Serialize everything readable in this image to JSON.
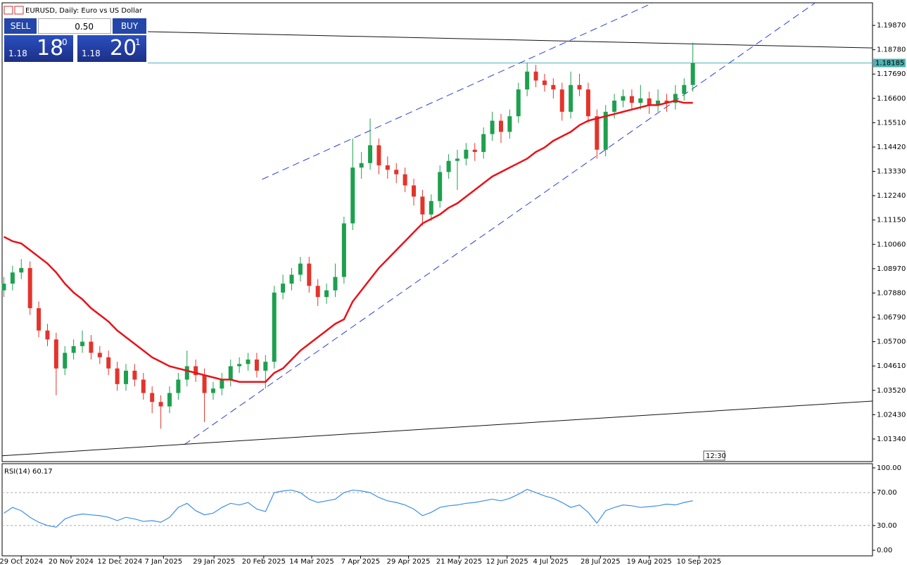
{
  "header": {
    "title": "EURUSD, Daily:  Euro vs US Dollar"
  },
  "trade_panel": {
    "sell": "SELL",
    "lot": "0.50",
    "buy": "BUY",
    "bid_small": "1.18",
    "bid_big": "18",
    "bid_sup": "0",
    "ask_small": "1.18",
    "ask_big": "20",
    "ask_sup": "1"
  },
  "time_label": "12:30",
  "chart_data": [
    {
      "type": "candlestick",
      "up_color": "#1ea04e",
      "down_color": "#e3342b",
      "xlim": [
        -0.2,
        99.6
      ],
      "ylim": [
        1.0036,
        1.2085
      ],
      "open": [
        1.08,
        1.083,
        1.088,
        1.09,
        1.072,
        1.062,
        1.058,
        1.045,
        1.052,
        1.055,
        1.057,
        1.052,
        1.05,
        1.045,
        1.038,
        1.044,
        1.04,
        1.034,
        1.03,
        1.028,
        1.034,
        1.04,
        1.046,
        1.042,
        1.034,
        1.036,
        1.04,
        1.046,
        1.047,
        1.049,
        1.044,
        1.048,
        1.079,
        1.083,
        1.087,
        1.092,
        1.082,
        1.077,
        1.08,
        1.086,
        1.11,
        1.135,
        1.137,
        1.145,
        1.136,
        1.134,
        1.132,
        1.127,
        1.122,
        1.114,
        1.12,
        1.133,
        1.138,
        1.139,
        1.143,
        1.142,
        1.15,
        1.156,
        1.151,
        1.158,
        1.17,
        1.178,
        1.174,
        1.172,
        1.17,
        1.16,
        1.172,
        1.17,
        1.158,
        1.143,
        1.16,
        1.165,
        1.167,
        1.164,
        1.166,
        1.163,
        1.165,
        1.164,
        1.168,
        1.172
      ],
      "high": [
        1.086,
        1.091,
        1.094,
        1.093,
        1.075,
        1.065,
        1.061,
        1.055,
        1.058,
        1.062,
        1.06,
        1.055,
        1.053,
        1.048,
        1.047,
        1.047,
        1.043,
        1.037,
        1.033,
        1.037,
        1.043,
        1.053,
        1.049,
        1.045,
        1.039,
        1.043,
        1.049,
        1.05,
        1.052,
        1.052,
        1.051,
        1.082,
        1.087,
        1.09,
        1.095,
        1.095,
        1.085,
        1.083,
        1.092,
        1.113,
        1.148,
        1.142,
        1.157,
        1.148,
        1.14,
        1.137,
        1.135,
        1.13,
        1.125,
        1.123,
        1.136,
        1.141,
        1.143,
        1.146,
        1.146,
        1.153,
        1.16,
        1.159,
        1.161,
        1.173,
        1.182,
        1.181,
        1.177,
        1.175,
        1.173,
        1.178,
        1.177,
        1.173,
        1.161,
        1.163,
        1.168,
        1.17,
        1.17,
        1.172,
        1.169,
        1.17,
        1.168,
        1.172,
        1.175,
        1.191
      ],
      "low": [
        1.077,
        1.08,
        1.085,
        1.069,
        1.059,
        1.055,
        1.033,
        1.042,
        1.049,
        1.052,
        1.049,
        1.047,
        1.042,
        1.035,
        1.035,
        1.037,
        1.031,
        1.025,
        1.018,
        1.025,
        1.031,
        1.037,
        1.039,
        1.021,
        1.031,
        1.033,
        1.037,
        1.043,
        1.044,
        1.041,
        1.036,
        1.045,
        1.076,
        1.08,
        1.084,
        1.079,
        1.073,
        1.074,
        1.077,
        1.083,
        1.107,
        1.13,
        1.134,
        1.132,
        1.13,
        1.128,
        1.124,
        1.118,
        1.109,
        1.111,
        1.117,
        1.13,
        1.125,
        1.136,
        1.138,
        1.139,
        1.147,
        1.146,
        1.148,
        1.155,
        1.167,
        1.171,
        1.169,
        1.166,
        1.156,
        1.157,
        1.167,
        1.155,
        1.139,
        1.14,
        1.157,
        1.162,
        1.161,
        1.161,
        1.159,
        1.16,
        1.16,
        1.161,
        1.165,
        1.169
      ],
      "close": [
        1.083,
        1.088,
        1.09,
        1.072,
        1.062,
        1.058,
        1.045,
        1.052,
        1.055,
        1.057,
        1.052,
        1.05,
        1.045,
        1.038,
        1.044,
        1.04,
        1.034,
        1.03,
        1.028,
        1.034,
        1.04,
        1.046,
        1.042,
        1.034,
        1.036,
        1.04,
        1.046,
        1.047,
        1.049,
        1.044,
        1.048,
        1.079,
        1.083,
        1.087,
        1.092,
        1.082,
        1.077,
        1.08,
        1.086,
        1.11,
        1.135,
        1.137,
        1.145,
        1.136,
        1.134,
        1.132,
        1.127,
        1.122,
        1.114,
        1.12,
        1.133,
        1.138,
        1.139,
        1.143,
        1.142,
        1.15,
        1.156,
        1.151,
        1.158,
        1.17,
        1.178,
        1.174,
        1.172,
        1.17,
        1.16,
        1.172,
        1.17,
        1.158,
        1.143,
        1.16,
        1.165,
        1.167,
        1.164,
        1.166,
        1.163,
        1.165,
        1.164,
        1.168,
        1.172,
        1.1818
      ],
      "ma": {
        "color": "#e8121a",
        "values": [
          1.104,
          1.102,
          1.101,
          1.098,
          1.095,
          1.092,
          1.088,
          1.083,
          1.079,
          1.076,
          1.072,
          1.069,
          1.066,
          1.062,
          1.059,
          1.056,
          1.053,
          1.05,
          1.048,
          1.046,
          1.045,
          1.044,
          1.043,
          1.042,
          1.041,
          1.04,
          1.04,
          1.039,
          1.039,
          1.039,
          1.039,
          1.043,
          1.045,
          1.049,
          1.053,
          1.056,
          1.059,
          1.062,
          1.065,
          1.067,
          1.075,
          1.08,
          1.085,
          1.09,
          1.094,
          1.098,
          1.102,
          1.106,
          1.11,
          1.112,
          1.114,
          1.117,
          1.119,
          1.122,
          1.125,
          1.128,
          1.131,
          1.133,
          1.135,
          1.137,
          1.139,
          1.142,
          1.144,
          1.147,
          1.149,
          1.151,
          1.154,
          1.156,
          1.157,
          1.158,
          1.159,
          1.16,
          1.161,
          1.162,
          1.163,
          1.163,
          1.164,
          1.165,
          1.164,
          1.164
        ]
      },
      "lines": [
        {
          "color": "#2d3fd6",
          "dash": true,
          "x": [
            20.7,
            93.5
          ],
          "y": [
            1.0109,
            1.2101
          ]
        },
        {
          "color": "#2d3fd6",
          "dash": true,
          "x": [
            29.6,
            74.6
          ],
          "y": [
            1.1297,
            1.2091
          ]
        },
        {
          "color": "#111111",
          "dash": false,
          "x": [
            16.5,
            99.6
          ],
          "y": [
            1.1959,
            1.1886
          ]
        },
        {
          "color": "#111111",
          "dash": false,
          "x": [
            -0.2,
            99.6
          ],
          "y": [
            1.0059,
            1.0304
          ]
        }
      ],
      "hline": {
        "value": 1.18185,
        "label": "1.18185",
        "color": "#4fb3b3"
      },
      "yticks": [
        {
          "value": 1.1987,
          "label": "1.19870"
        },
        {
          "value": 1.1878,
          "label": "1.18780"
        },
        {
          "value": 1.1769,
          "label": "1.17690"
        },
        {
          "value": 1.166,
          "label": "1.16600"
        },
        {
          "value": 1.1551,
          "label": "1.15510"
        },
        {
          "value": 1.1442,
          "label": "1.14420"
        },
        {
          "value": 1.1333,
          "label": "1.13330"
        },
        {
          "value": 1.1224,
          "label": "1.12240"
        },
        {
          "value": 1.1115,
          "label": "1.11150"
        },
        {
          "value": 1.1006,
          "label": "1.10060"
        },
        {
          "value": 1.0897,
          "label": "1.08970"
        },
        {
          "value": 1.0788,
          "label": "1.07880"
        },
        {
          "value": 1.0679,
          "label": "1.06790"
        },
        {
          "value": 1.057,
          "label": "1.05700"
        },
        {
          "value": 1.0461,
          "label": "1.04610"
        },
        {
          "value": 1.0352,
          "label": "1.03520"
        },
        {
          "value": 1.0243,
          "label": "1.02430"
        },
        {
          "value": 1.0134,
          "label": "1.01340"
        }
      ],
      "xticks": [
        {
          "value": 2.0,
          "label": "29 Oct 2024"
        },
        {
          "value": 7.7,
          "label": "20 Nov 2024"
        },
        {
          "value": 13.3,
          "label": "12 Dec 2024"
        },
        {
          "value": 18.3,
          "label": "7 Jan 2025"
        },
        {
          "value": 24.1,
          "label": "29 Jan 2025"
        },
        {
          "value": 29.8,
          "label": "20 Feb 2025"
        },
        {
          "value": 35.3,
          "label": "14 Mar 2025"
        },
        {
          "value": 40.9,
          "label": "7 Apr 2025"
        },
        {
          "value": 46.4,
          "label": "29 Apr 2025"
        },
        {
          "value": 52.2,
          "label": "21 May 2025"
        },
        {
          "value": 57.7,
          "label": "12 Jun 2025"
        },
        {
          "value": 62.7,
          "label": "4 Jul 2025"
        },
        {
          "value": 68.4,
          "label": "28 Jul 2025"
        },
        {
          "value": 74.0,
          "label": "19 Aug 2025"
        },
        {
          "value": 79.7,
          "label": "10 Sep 2025"
        }
      ]
    },
    {
      "type": "line",
      "label": "RSI(14) 60.17",
      "color": "#3c8fe6",
      "xlim": [
        -0.2,
        99.6
      ],
      "ylim": [
        -6.8,
        103.4
      ],
      "values": [
        45,
        52,
        48,
        40,
        34,
        30,
        28,
        38,
        42,
        44,
        43,
        42,
        40,
        36,
        40,
        38,
        35,
        36,
        34,
        40,
        52,
        57,
        48,
        43,
        45,
        52,
        57,
        55,
        58,
        50,
        47,
        70,
        72,
        73,
        70,
        62,
        58,
        60,
        62,
        70,
        73,
        72,
        70,
        64,
        60,
        58,
        55,
        50,
        42,
        46,
        52,
        54,
        55,
        57,
        58,
        60,
        62,
        60,
        63,
        68,
        74,
        70,
        66,
        63,
        58,
        52,
        55,
        46,
        33,
        48,
        52,
        55,
        54,
        52,
        53,
        54,
        56,
        55,
        58,
        60.17
      ],
      "levels": [
        70,
        30
      ],
      "yticks": [
        {
          "value": 100,
          "label": "100.00"
        },
        {
          "value": 70,
          "label": "70.00"
        },
        {
          "value": 30,
          "label": "30.00"
        },
        {
          "value": 0,
          "label": "0.00"
        }
      ]
    }
  ]
}
